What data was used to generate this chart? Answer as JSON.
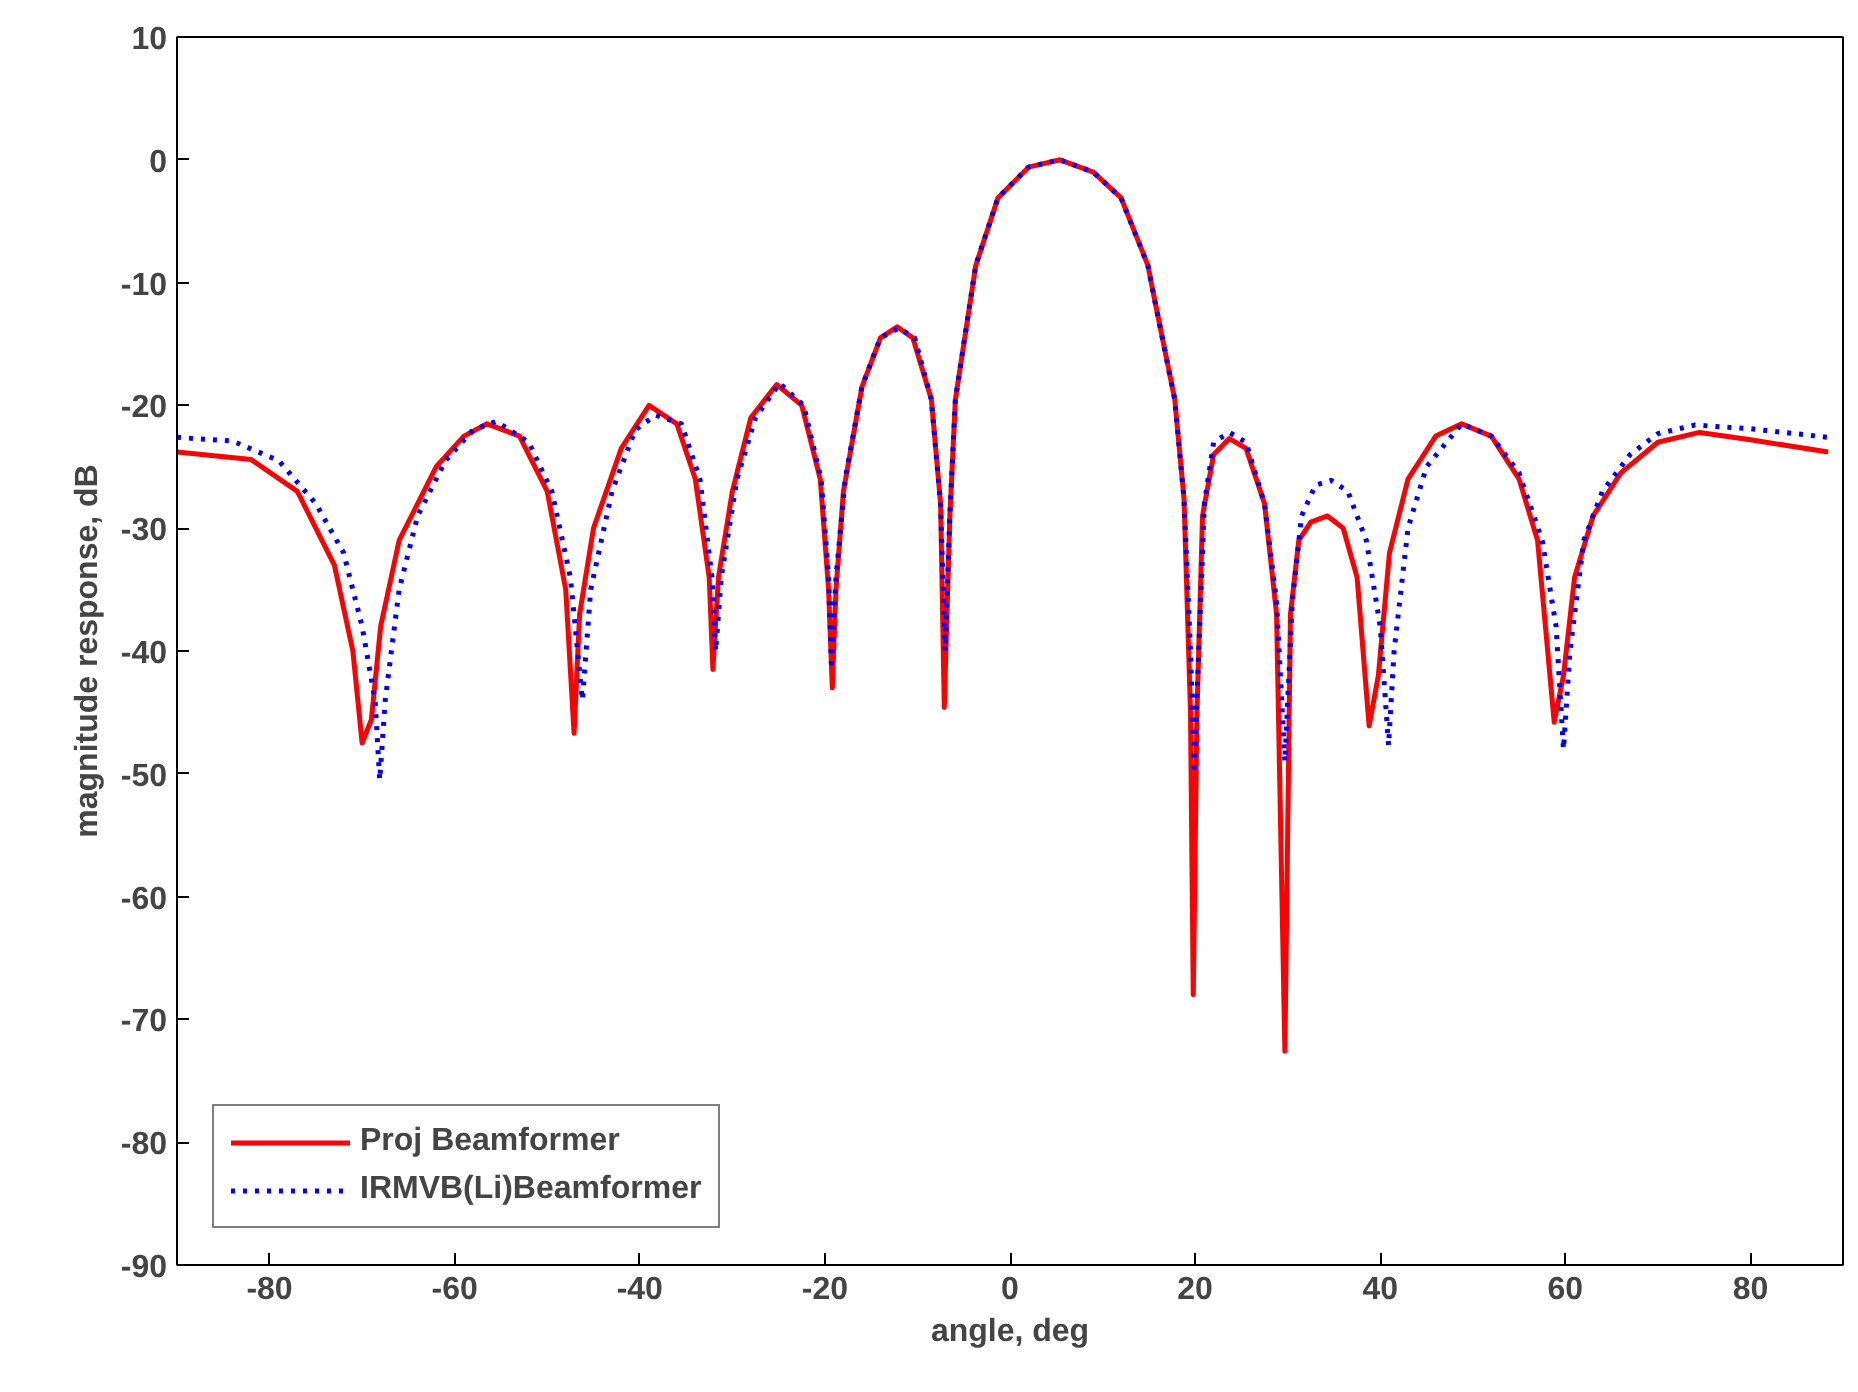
{
  "chart_data": {
    "type": "line",
    "xlabel": "angle, deg",
    "ylabel": "magnitude response, dB",
    "xlim": [
      -90,
      90
    ],
    "xticks": [
      -80,
      -60,
      -40,
      -20,
      0,
      20,
      40,
      60,
      80
    ],
    "ylim": [
      -90,
      10
    ],
    "yticks": [
      -90,
      -80,
      -70,
      -60,
      -50,
      -40,
      -30,
      -20,
      -10,
      0,
      10
    ],
    "grid": false,
    "legend": "bottom left",
    "marker": "none",
    "series": [
      {
        "name": "Proj Beamformer",
        "color": "#ff0000",
        "line_style": "solid",
        "x": [
          -90,
          -82,
          -77,
          -73,
          -71,
          -70,
          -69,
          -68,
          -66,
          -62,
          -59,
          -56.5,
          -53,
          -50,
          -48,
          -47.1,
          -46.5,
          -45,
          -42,
          -39,
          -36,
          -34,
          -32.5,
          -32.1,
          -31.5,
          -30,
          -28,
          -25.2,
          -22.5,
          -20.5,
          -19.6,
          -19.2,
          -18.8,
          -18,
          -16,
          -14,
          -12.2,
          -10.5,
          -8.5,
          -7.5,
          -7.1,
          -6.5,
          -5.9,
          -3.7,
          -1.3,
          2,
          5.4,
          9,
          12,
          14.9,
          15.6,
          17.8,
          18.8,
          19.5,
          19.8,
          20.2,
          20.8,
          22,
          23.7,
          25.5,
          27.5,
          28.8,
          29.7,
          30.3,
          31.2,
          32.5,
          34.3,
          36,
          37.5,
          38.8,
          39.8,
          41,
          43,
          46,
          48.8,
          52,
          55,
          57,
          58.8,
          59.8,
          61,
          63,
          66,
          70,
          74.5,
          80,
          88.4
        ],
        "values": [
          -23.8,
          -24.4,
          -27,
          -33,
          -40,
          -47.5,
          -45.6,
          -38,
          -31,
          -25,
          -22.5,
          -21.5,
          -22.5,
          -27,
          -35,
          -46.7,
          -37,
          -30,
          -23.5,
          -20,
          -21.5,
          -26,
          -34,
          -41.5,
          -34,
          -27,
          -21,
          -18.3,
          -20,
          -26,
          -35,
          -43,
          -35,
          -27,
          -18.5,
          -14.5,
          -13.6,
          -14.5,
          -19.5,
          -28,
          -44.6,
          -29,
          -19.5,
          -8.6,
          -3.1,
          -0.6,
          0,
          -1,
          -3.1,
          -8.6,
          -11.3,
          -19.5,
          -27.6,
          -45,
          -68,
          -45,
          -29,
          -24,
          -22.7,
          -23.5,
          -28,
          -37,
          -72.6,
          -37,
          -31,
          -29.5,
          -29,
          -30,
          -34,
          -46.1,
          -42,
          -32,
          -26,
          -22.5,
          -21.5,
          -22.5,
          -26,
          -31,
          -45.8,
          -42,
          -34,
          -29,
          -25.5,
          -23,
          -22.2,
          -22.8,
          -23.8
        ]
      },
      {
        "name": "IRMVB(Li)Beamformer",
        "color": "#0000ff",
        "line_style": "dotted",
        "x": [
          -90,
          -84,
          -79,
          -75,
          -72,
          -70,
          -68.6,
          -68.1,
          -67.5,
          -66,
          -64,
          -61,
          -58,
          -55.5,
          -52,
          -49.5,
          -47.5,
          -46.2,
          -45.3,
          -43,
          -40.5,
          -38.3,
          -35.5,
          -33.5,
          -32.2,
          -31.8,
          -31.2,
          -29.5,
          -27.5,
          -24.9,
          -22.3,
          -20.4,
          -19.6,
          -19.3,
          -18.8,
          -17.8,
          -16,
          -14,
          -12,
          -10.3,
          -8.5,
          -7.5,
          -7,
          -6.5,
          -5.9,
          -3.7,
          -1.3,
          2,
          5.4,
          9,
          12,
          14.9,
          15.6,
          17.8,
          18.8,
          19.5,
          19.9,
          20.4,
          21,
          22,
          23.7,
          25.5,
          27.5,
          28.8,
          29.7,
          30.5,
          31.5,
          33,
          34.7,
          36.5,
          38.5,
          40,
          40.9,
          41.5,
          43,
          45,
          48.8,
          52,
          55,
          57.5,
          59,
          59.8,
          60.5,
          62,
          64,
          67,
          70,
          74,
          80,
          88.4
        ],
        "values": [
          -22.6,
          -22.9,
          -24.5,
          -28,
          -32,
          -38,
          -44,
          -50.5,
          -44,
          -35,
          -29,
          -24.5,
          -22,
          -21.3,
          -23,
          -27,
          -34,
          -44,
          -35,
          -27,
          -22,
          -20.8,
          -21.5,
          -26,
          -34,
          -40,
          -34,
          -26,
          -21,
          -18.2,
          -20,
          -26,
          -34,
          -41,
          -34,
          -26,
          -18.5,
          -14.5,
          -13.7,
          -14.5,
          -19.5,
          -28,
          -40,
          -29,
          -19.5,
          -8.6,
          -3.1,
          -0.6,
          0,
          -1,
          -3.1,
          -8.6,
          -11.3,
          -19.5,
          -27.6,
          -40,
          -49.5,
          -40,
          -28,
          -23,
          -22.2,
          -23,
          -28,
          -36,
          -49,
          -36,
          -29,
          -26.5,
          -26.1,
          -27,
          -31,
          -38,
          -47.7,
          -40,
          -30,
          -25,
          -21.5,
          -22.5,
          -25.5,
          -31,
          -38,
          -48,
          -40,
          -31,
          -27,
          -24,
          -22.3,
          -21.6,
          -21.9,
          -22.6
        ]
      }
    ]
  }
}
